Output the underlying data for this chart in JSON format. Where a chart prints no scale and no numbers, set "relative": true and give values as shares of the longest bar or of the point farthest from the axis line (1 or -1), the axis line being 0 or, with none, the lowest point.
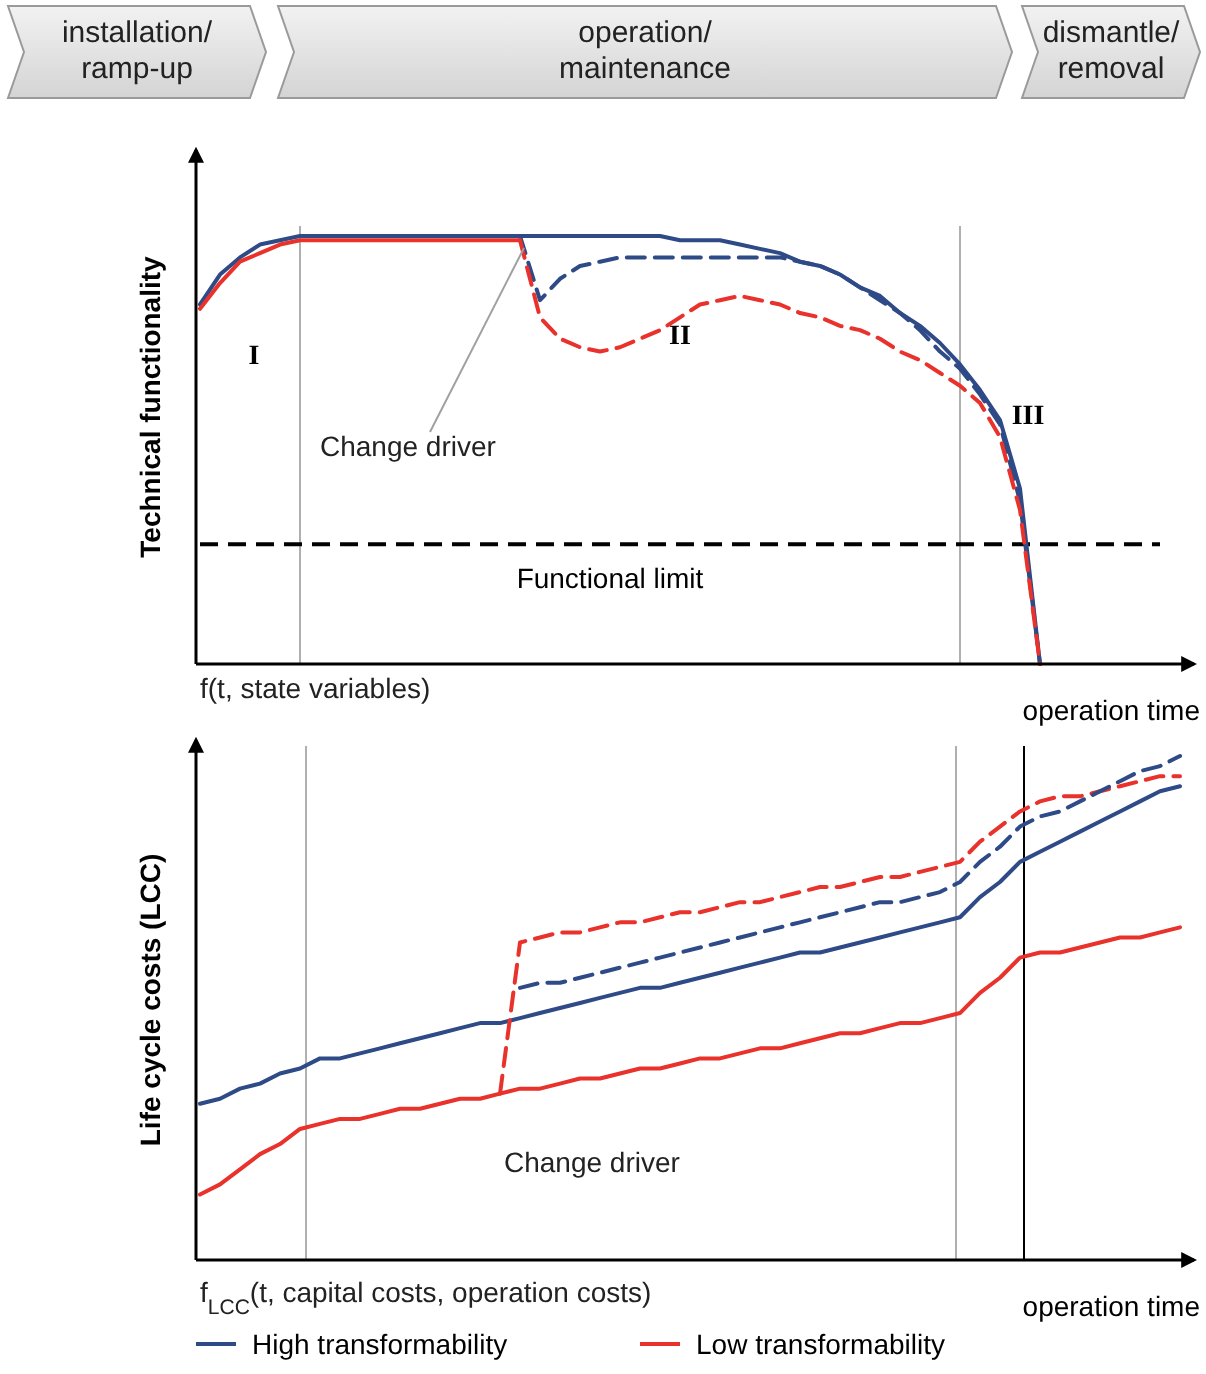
{
  "chart_data": [
    {
      "type": "line",
      "relative": true,
      "ylabel": "Technical functionality",
      "xlabel": "operation time",
      "annotations": [
        "installation/ ramp-up",
        "operation/ maintenance",
        "dismantle/ removal",
        "I",
        "II",
        "III",
        "Change driver",
        "f(t, state variables)"
      ],
      "categories": [
        null,
        null,
        null,
        null,
        null,
        null,
        null,
        null,
        null,
        null,
        null,
        null,
        null,
        null,
        null,
        null,
        null,
        null,
        null,
        null,
        null,
        null,
        null,
        null,
        null,
        null,
        null,
        null,
        null,
        null,
        null,
        null,
        null,
        null,
        null,
        null,
        null,
        null,
        null,
        null,
        null,
        null,
        null,
        null,
        null,
        null,
        null,
        null,
        null,
        null
      ],
      "series": [
        {
          "color": "#2e4a87",
          "line_style": "solid",
          "values": [
            0.84,
            0.91,
            0.95,
            0.98,
            0.99,
            1,
            1,
            1,
            1,
            1,
            1,
            1,
            1,
            1,
            1,
            1,
            1,
            1,
            1,
            1,
            1,
            1,
            1,
            1,
            0.99,
            0.99,
            0.99,
            0.98,
            0.97,
            0.96,
            0.94,
            0.93,
            0.91,
            0.88,
            0.86,
            0.82,
            0.79,
            0.75,
            0.7,
            0.64,
            0.57,
            0.41,
            0,
            null,
            null,
            null,
            null,
            null,
            null,
            null
          ]
        },
        {
          "color": "#2e4a87",
          "line_style": "dashed",
          "values": [
            null,
            null,
            null,
            null,
            null,
            null,
            null,
            null,
            null,
            null,
            null,
            null,
            null,
            null,
            null,
            null,
            1,
            0.85,
            0.9,
            0.93,
            0.94,
            0.95,
            0.95,
            0.95,
            0.95,
            0.95,
            0.95,
            0.95,
            0.95,
            0.95,
            0.94,
            0.93,
            0.91,
            0.88,
            0.85,
            0.82,
            0.78,
            0.73,
            0.69,
            0.63,
            0.56,
            0.38,
            0,
            null,
            null,
            null,
            null,
            null,
            null,
            null
          ]
        },
        {
          "color": "#e8322b",
          "line_style": "solid",
          "values": [
            0.83,
            0.89,
            0.94,
            0.96,
            0.98,
            0.99,
            0.99,
            0.99,
            0.99,
            0.99,
            0.99,
            0.99,
            0.99,
            0.99,
            0.99,
            0.99,
            0.99,
            null,
            null,
            null,
            null,
            null,
            null,
            null,
            null,
            null,
            null,
            null,
            null,
            null,
            null,
            null,
            null,
            null,
            null,
            null,
            null,
            null,
            null,
            null,
            null,
            null,
            null,
            null,
            null,
            null,
            null,
            null,
            null,
            null
          ]
        },
        {
          "color": "#e8322b",
          "line_style": "dashed",
          "values": [
            null,
            null,
            null,
            null,
            null,
            null,
            null,
            null,
            null,
            null,
            null,
            null,
            null,
            null,
            null,
            null,
            0.99,
            0.81,
            0.76,
            0.74,
            0.73,
            0.74,
            0.76,
            0.78,
            0.81,
            0.84,
            0.85,
            0.86,
            0.85,
            0.84,
            0.82,
            0.81,
            0.79,
            0.78,
            0.76,
            0.73,
            0.71,
            0.68,
            0.65,
            0.61,
            0.53,
            0.36,
            0,
            null,
            null,
            null,
            null,
            null,
            null,
            null
          ]
        }
      ],
      "ref_lines": [
        {
          "axis": "y",
          "value": 0.28,
          "label": "Functional limit",
          "color": "#000000",
          "line_style": "dashed"
        }
      ]
    },
    {
      "type": "line",
      "relative": true,
      "ylabel": "Life cycle costs (LCC)",
      "xlabel": "operation time",
      "legend": "bottom",
      "annotations": [
        "Change driver",
        "f$_{LCC}$(t, capital costs, operation costs)"
      ],
      "categories": [
        null,
        null,
        null,
        null,
        null,
        null,
        null,
        null,
        null,
        null,
        null,
        null,
        null,
        null,
        null,
        null,
        null,
        null,
        null,
        null,
        null,
        null,
        null,
        null,
        null,
        null,
        null,
        null,
        null,
        null,
        null,
        null,
        null,
        null,
        null,
        null,
        null,
        null,
        null,
        null,
        null,
        null,
        null,
        null,
        null,
        null,
        null,
        null,
        null,
        null
      ],
      "series": [
        {
          "name": "High transformability",
          "color": "#2e4a87",
          "line_style": "solid",
          "values": [
            0.31,
            0.32,
            0.34,
            0.35,
            0.37,
            0.38,
            0.4,
            0.4,
            0.41,
            0.42,
            0.43,
            0.44,
            0.45,
            0.46,
            0.47,
            0.47,
            0.48,
            0.49,
            0.5,
            0.51,
            0.52,
            0.53,
            0.54,
            0.54,
            0.55,
            0.56,
            0.57,
            0.58,
            0.59,
            0.6,
            0.61,
            0.61,
            0.62,
            0.63,
            0.64,
            0.65,
            0.66,
            0.67,
            0.68,
            0.72,
            0.75,
            0.79,
            0.81,
            0.83,
            0.85,
            0.87,
            0.89,
            0.91,
            0.93,
            0.94
          ]
        },
        {
          "name": "Low transformability",
          "color": "#e8322b",
          "line_style": "solid",
          "values": [
            0.13,
            0.15,
            0.18,
            0.21,
            0.23,
            0.26,
            0.27,
            0.28,
            0.28,
            0.29,
            0.3,
            0.3,
            0.31,
            0.32,
            0.32,
            0.33,
            0.34,
            0.34,
            0.35,
            0.36,
            0.36,
            0.37,
            0.38,
            0.38,
            0.39,
            0.4,
            0.4,
            0.41,
            0.42,
            0.42,
            0.43,
            0.44,
            0.45,
            0.45,
            0.46,
            0.47,
            0.47,
            0.48,
            0.49,
            0.53,
            0.56,
            0.6,
            0.61,
            0.61,
            0.62,
            0.63,
            0.64,
            0.64,
            0.65,
            0.66
          ]
        },
        {
          "color": "#e8322b",
          "line_style": "dashed",
          "values": [
            null,
            null,
            null,
            null,
            null,
            null,
            null,
            null,
            null,
            null,
            null,
            null,
            null,
            null,
            null,
            0.33,
            0.63,
            0.64,
            0.65,
            0.65,
            0.66,
            0.67,
            0.67,
            0.68,
            0.69,
            0.69,
            0.7,
            0.71,
            0.71,
            0.72,
            0.73,
            0.74,
            0.74,
            0.75,
            0.76,
            0.76,
            0.77,
            0.78,
            0.79,
            0.83,
            0.86,
            0.89,
            0.91,
            0.92,
            0.92,
            0.93,
            0.94,
            0.95,
            0.96,
            0.96
          ]
        },
        {
          "color": "#2e4a87",
          "line_style": "dashed",
          "values": [
            null,
            null,
            null,
            null,
            null,
            null,
            null,
            null,
            null,
            null,
            null,
            null,
            null,
            null,
            null,
            null,
            0.54,
            0.55,
            0.55,
            0.56,
            0.57,
            0.58,
            0.59,
            0.6,
            0.61,
            0.62,
            0.63,
            0.64,
            0.65,
            0.66,
            0.67,
            0.68,
            0.69,
            0.7,
            0.71,
            0.71,
            0.72,
            0.73,
            0.75,
            0.79,
            0.82,
            0.86,
            0.88,
            0.89,
            0.91,
            0.93,
            0.95,
            0.97,
            0.98,
            1.0
          ]
        }
      ]
    }
  ]
}
